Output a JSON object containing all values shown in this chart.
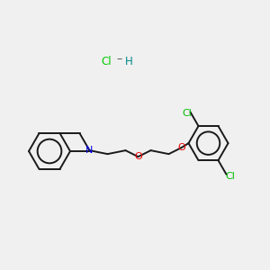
{
  "bg_color": "#f0f0f0",
  "hcl_color": "#00cc00",
  "h_color": "#008888",
  "n_color": "#0000ee",
  "o_color": "#ee0000",
  "cl_color": "#00bb00",
  "bond_color": "#1a1a1a",
  "bond_width": 1.4
}
